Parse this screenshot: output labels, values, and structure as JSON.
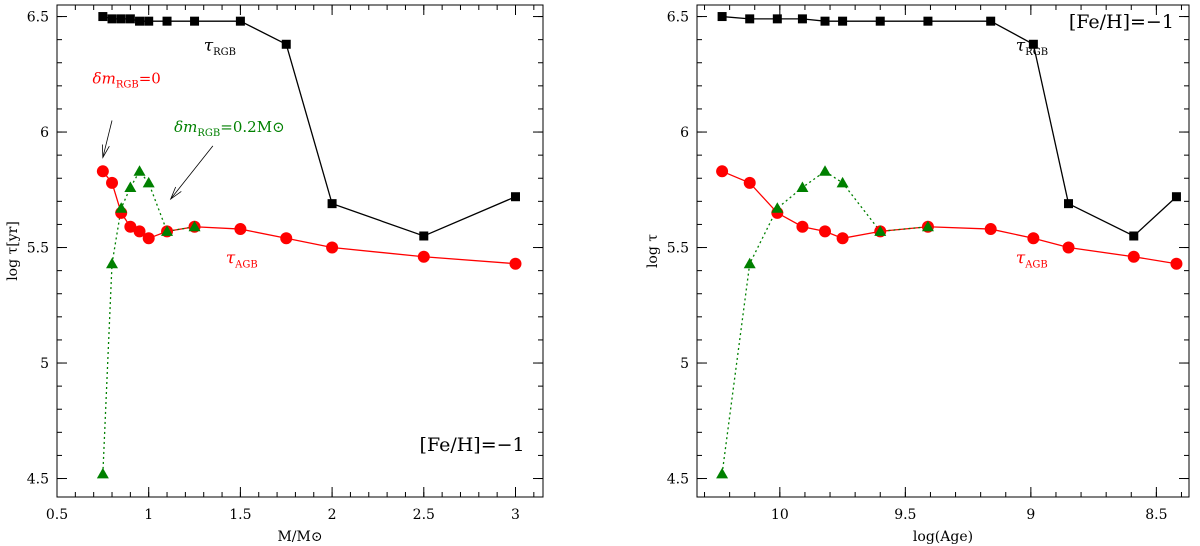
{
  "chart_data": [
    {
      "type": "scatter",
      "xlabel": "M/M⊙",
      "ylabel": "log τ[yr]",
      "xlim": [
        0.5,
        3.15
      ],
      "ylim": [
        4.42,
        6.55
      ],
      "xticks": [
        0.5,
        1,
        1.5,
        2,
        2.5,
        3
      ],
      "xtick_labels": [
        "0.5",
        "1",
        "1.5",
        "2",
        "2.5",
        "3"
      ],
      "yticks": [
        4.5,
        5,
        5.5,
        6,
        6.5
      ],
      "ytick_labels": [
        "4.5",
        "5",
        "5.5",
        "6",
        "6.5"
      ],
      "metallicity_label": "[Fe/H]=−1",
      "metallicity_label_position": "bottom-right",
      "series": [
        {
          "name": "τRGB",
          "label_main": "τ",
          "label_sub": "RGB",
          "color": "#000000",
          "marker": "square",
          "linestyle": "solid",
          "x": [
            0.75,
            0.8,
            0.85,
            0.9,
            0.95,
            1.0,
            1.1,
            1.25,
            1.5,
            1.75,
            2.0,
            2.5,
            3.0
          ],
          "y": [
            6.5,
            6.49,
            6.49,
            6.49,
            6.48,
            6.48,
            6.48,
            6.48,
            6.48,
            6.38,
            5.69,
            5.55,
            5.72
          ]
        },
        {
          "name": "τAGB",
          "label_main": "τ",
          "label_sub": "AGB",
          "color": "#ff0000",
          "marker": "circle",
          "linestyle": "solid",
          "x": [
            0.75,
            0.8,
            0.85,
            0.9,
            0.95,
            1.0,
            1.1,
            1.25,
            1.5,
            1.75,
            2.0,
            2.5,
            3.0
          ],
          "y": [
            5.83,
            5.78,
            5.65,
            5.59,
            5.57,
            5.54,
            5.57,
            5.59,
            5.58,
            5.54,
            5.5,
            5.46,
            5.43
          ]
        },
        {
          "name": "",
          "color": "#008000",
          "marker": "triangle",
          "linestyle": "dotted",
          "x": [
            0.75,
            0.8,
            0.85,
            0.9,
            0.95,
            1.0,
            1.1,
            1.25
          ],
          "y": [
            4.52,
            5.43,
            5.67,
            5.76,
            5.83,
            5.78,
            5.57,
            5.59
          ]
        }
      ],
      "annotations": [
        {
          "main": "δm",
          "sub": "RGB",
          "rest": "=0",
          "color": "#ff0000"
        },
        {
          "main": "δm",
          "sub": "RGB",
          "rest": "=0.2M⊙",
          "color": "#008000"
        }
      ]
    },
    {
      "type": "scatter",
      "xlabel": "log(Age)",
      "ylabel": "log τ",
      "xlim": [
        10.33,
        8.37
      ],
      "ylim": [
        4.42,
        6.55
      ],
      "xticks": [
        10,
        9.5,
        9,
        8.5
      ],
      "xtick_labels": [
        "10",
        "9.5",
        "9",
        "8.5"
      ],
      "yticks": [
        4.5,
        5,
        5.5,
        6,
        6.5
      ],
      "ytick_labels": [
        "4.5",
        "5",
        "5.5",
        "6",
        "6.5"
      ],
      "metallicity_label": "[Fe/H]=−1",
      "metallicity_label_position": "top-right",
      "series": [
        {
          "name": "τRGB",
          "label_main": "τ",
          "label_sub": "RGB",
          "color": "#000000",
          "marker": "square",
          "linestyle": "solid",
          "x": [
            10.23,
            10.12,
            10.01,
            9.91,
            9.82,
            9.75,
            9.6,
            9.41,
            9.16,
            8.99,
            8.85,
            8.59,
            8.42
          ],
          "y": [
            6.5,
            6.49,
            6.49,
            6.49,
            6.48,
            6.48,
            6.48,
            6.48,
            6.48,
            6.38,
            5.69,
            5.55,
            5.72
          ]
        },
        {
          "name": "τAGB",
          "label_main": "τ",
          "label_sub": "AGB",
          "color": "#ff0000",
          "marker": "circle",
          "linestyle": "solid",
          "x": [
            10.23,
            10.12,
            10.01,
            9.91,
            9.82,
            9.75,
            9.6,
            9.41,
            9.16,
            8.99,
            8.85,
            8.59,
            8.42
          ],
          "y": [
            5.83,
            5.78,
            5.65,
            5.59,
            5.57,
            5.54,
            5.57,
            5.59,
            5.58,
            5.54,
            5.5,
            5.46,
            5.43
          ]
        },
        {
          "name": "",
          "color": "#008000",
          "marker": "triangle",
          "linestyle": "dotted",
          "x": [
            10.23,
            10.12,
            10.01,
            9.91,
            9.82,
            9.75,
            9.6,
            9.41
          ],
          "y": [
            4.52,
            5.43,
            5.67,
            5.76,
            5.83,
            5.78,
            5.57,
            5.59
          ]
        }
      ],
      "annotations": []
    }
  ]
}
